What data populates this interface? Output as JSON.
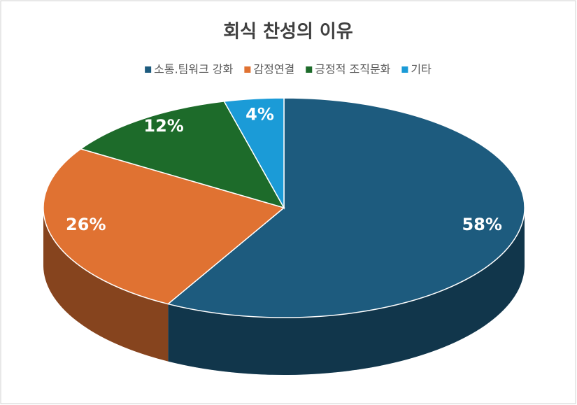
{
  "chart_data": {
    "type": "pie",
    "title": "회식 찬성의 이유",
    "categories": [
      "소통.팀워크 강화",
      "감정연결",
      "긍정적 조직문화",
      "기타"
    ],
    "values": [
      58,
      26,
      12,
      4
    ],
    "value_labels": [
      "58%",
      "26%",
      "12%",
      "4%"
    ],
    "colors": [
      "#1d5b7e",
      "#e07232",
      "#1d6b2a",
      "#1b9bd7"
    ],
    "legend": "top"
  }
}
